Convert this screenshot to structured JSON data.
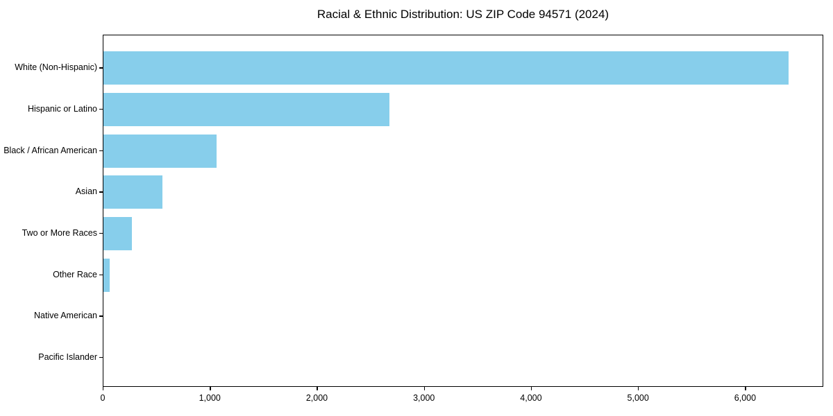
{
  "figure": {
    "background": "#ffffff",
    "axis_color": "#000000",
    "text_color": "#000000"
  },
  "chart_data": {
    "type": "bar",
    "orientation": "horizontal",
    "title": "Racial & Ethnic Distribution: US ZIP Code 94571 (2024)",
    "xlabel": "",
    "ylabel": "",
    "categories": [
      "White (Non-Hispanic)",
      "Hispanic or Latino",
      "Black / African American",
      "Asian",
      "Two or More Races",
      "Other Race",
      "Native American",
      "Pacific Islander"
    ],
    "values": [
      6400,
      2670,
      1055,
      550,
      268,
      60,
      0,
      0
    ],
    "xlim": [
      0,
      6730
    ],
    "x_ticks": [
      0,
      1000,
      2000,
      3000,
      4000,
      5000,
      6000
    ],
    "x_tick_labels": [
      "0",
      "1,000",
      "2,000",
      "3,000",
      "4,000",
      "5,000",
      "6,000"
    ],
    "grid": false,
    "legend": null,
    "bar_color": "#87CEEB"
  }
}
